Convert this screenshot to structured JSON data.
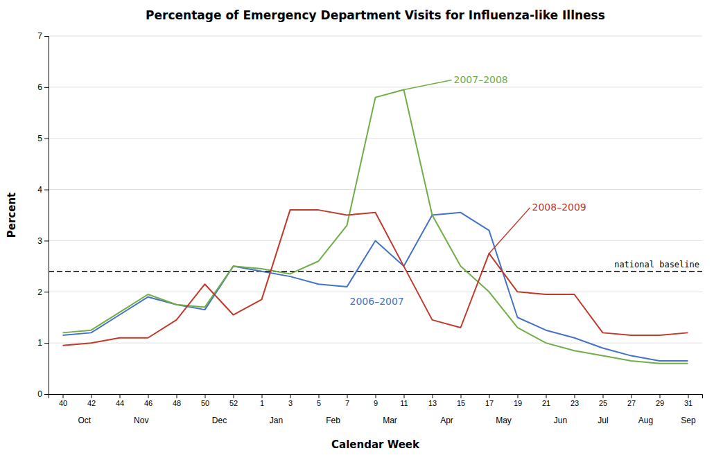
{
  "chart_data": {
    "type": "line",
    "title": "Percentage of Emergency Department Visits for Influenza-like Illness",
    "xlabel": "Calendar Week",
    "ylabel": "Percent",
    "categories": [
      "40",
      "42",
      "44",
      "46",
      "48",
      "50",
      "52",
      "1",
      "3",
      "5",
      "7",
      "9",
      "11",
      "13",
      "15",
      "17",
      "19",
      "21",
      "23",
      "25",
      "27",
      "29",
      "31"
    ],
    "x2ticks": [
      {
        "value": 0.75,
        "label": "Oct"
      },
      {
        "value": 2.75,
        "label": "Nov"
      },
      {
        "value": 5.5,
        "label": "Dec"
      },
      {
        "value": 7.5,
        "label": "Jan"
      },
      {
        "value": 9.5,
        "label": "Feb"
      },
      {
        "value": 11.5,
        "label": "Mar"
      },
      {
        "value": 13.5,
        "label": "Apr"
      },
      {
        "value": 15.5,
        "label": "May"
      },
      {
        "value": 17.5,
        "label": "Jun"
      },
      {
        "value": 19.0,
        "label": "Jul"
      },
      {
        "value": 20.5,
        "label": "Aug"
      },
      {
        "value": 22.0,
        "label": "Sep"
      }
    ],
    "ylim": [
      0,
      7
    ],
    "yticks": [
      0,
      1,
      2,
      3,
      4,
      5,
      6,
      7
    ],
    "grid": true,
    "series": [
      {
        "name": "2006–2007",
        "color": "#4472c4",
        "values": [
          1.15,
          1.2,
          1.55,
          1.9,
          1.75,
          1.65,
          2.5,
          2.4,
          2.3,
          2.15,
          2.1,
          3.0,
          2.5,
          3.5,
          3.55,
          3.2,
          1.5,
          1.25,
          1.1,
          0.9,
          0.75,
          0.65,
          0.65
        ]
      },
      {
        "name": "2007–2008",
        "color": "#70ad47",
        "values": [
          1.2,
          1.25,
          1.6,
          1.95,
          1.75,
          1.7,
          2.5,
          2.45,
          2.35,
          2.6,
          3.3,
          5.8,
          5.95,
          3.5,
          2.5,
          2.0,
          1.3,
          1.0,
          0.85,
          0.75,
          0.65,
          0.6,
          0.6
        ]
      },
      {
        "name": "2008–2009",
        "color": "#c0392b",
        "values": [
          0.95,
          1.0,
          1.1,
          1.1,
          1.45,
          2.15,
          1.55,
          1.85,
          3.6,
          3.6,
          3.5,
          3.55,
          2.5,
          1.45,
          1.3,
          2.75,
          2.0,
          1.95,
          1.95,
          1.2,
          1.15,
          1.15,
          1.2
        ]
      }
    ],
    "hlines": [
      {
        "value": 2.4,
        "label": "national baseline",
        "line_style": "dashed",
        "color": "black"
      }
    ]
  }
}
